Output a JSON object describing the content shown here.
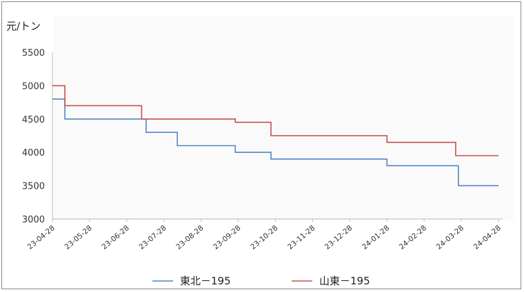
{
  "chart_data": {
    "type": "line",
    "ylabel": "元/トン",
    "ylim": [
      3000,
      5500
    ],
    "yticks": [
      "5500",
      "5000",
      "4500",
      "4000",
      "3500",
      "3000"
    ],
    "categories": [
      "23-04-28",
      "23-05-28",
      "23-06-28",
      "23-07-28",
      "23-08-28",
      "23-09-28",
      "23-10-28",
      "23-11-28",
      "23-12-28",
      "24-01-28",
      "24-02-28",
      "24-03-28",
      "24-04-28"
    ],
    "grid": false,
    "legend_position": "bottom",
    "series": [
      {
        "name": "東北－195",
        "color": "#4f86c6",
        "points": [
          [
            0,
            4800
          ],
          [
            0.14,
            4800
          ],
          [
            0.14,
            4500
          ],
          [
            1.05,
            4500
          ],
          [
            1.05,
            4300
          ],
          [
            1.4,
            4300
          ],
          [
            1.4,
            4100
          ],
          [
            2.05,
            4100
          ],
          [
            2.05,
            4000
          ],
          [
            2.45,
            4000
          ],
          [
            2.45,
            3900
          ],
          [
            3.75,
            3900
          ],
          [
            3.75,
            3800
          ],
          [
            4.55,
            3800
          ],
          [
            4.55,
            3500
          ],
          [
            5.0,
            3500
          ]
        ]
      },
      {
        "name": "山東－195",
        "color": "#c0504d",
        "points": [
          [
            0,
            5000
          ],
          [
            0.14,
            5000
          ],
          [
            0.14,
            4700
          ],
          [
            1.0,
            4700
          ],
          [
            1.0,
            4500
          ],
          [
            2.05,
            4500
          ],
          [
            2.05,
            4450
          ],
          [
            2.45,
            4450
          ],
          [
            2.45,
            4250
          ],
          [
            3.75,
            4250
          ],
          [
            3.75,
            4150
          ],
          [
            4.52,
            4150
          ],
          [
            4.52,
            3950
          ],
          [
            5.0,
            3950
          ]
        ]
      }
    ]
  }
}
